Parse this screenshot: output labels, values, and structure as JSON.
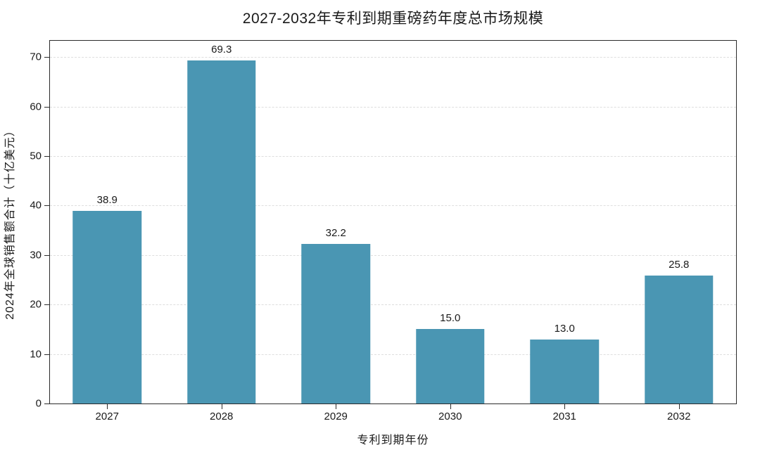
{
  "chart_data": {
    "type": "bar",
    "title": "2027-2032年专利到期重磅药年度总市场规模",
    "xlabel": "专利到期年份",
    "ylabel": "2024年全球销售额合计（十亿美元）",
    "categories": [
      "2027",
      "2028",
      "2029",
      "2030",
      "2031",
      "2032"
    ],
    "values": [
      38.9,
      69.3,
      32.2,
      15.0,
      13.0,
      25.8
    ],
    "value_labels": [
      "38.9",
      "69.3",
      "32.2",
      "15.0",
      "13.0",
      "25.8"
    ],
    "yticks": [
      0,
      10,
      20,
      30,
      40,
      50,
      60,
      70
    ],
    "ylim": [
      0,
      73.3
    ],
    "bar_color": "#4a96b3",
    "grid": "horizontal-dashed",
    "gridline_color": "#dedede",
    "spine_color": "#2b2b2b",
    "legend_position": "none",
    "background_color": "#ffffff"
  }
}
